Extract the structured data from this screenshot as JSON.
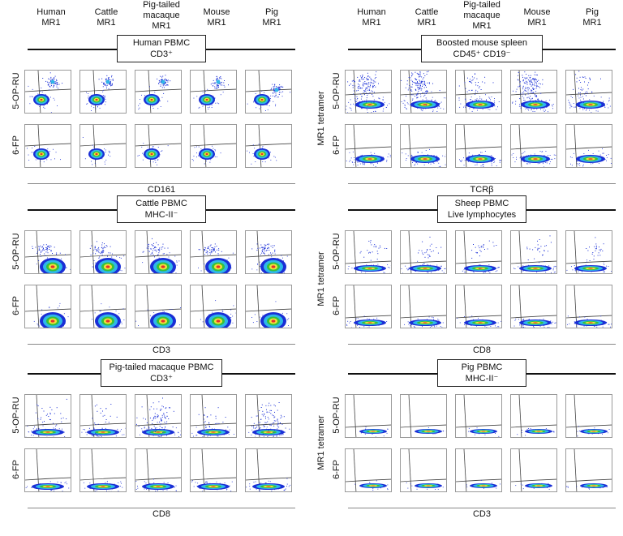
{
  "columns": [
    "Human MR1",
    "Cattle MR1",
    "Pig-tailed macaque MR1",
    "Mouse MR1",
    "Pig MR1"
  ],
  "left_column_headers": [
    "Human\nMR1",
    "Cattle\nMR1",
    "Pig-tailed\nmacaque\nMR1",
    "Mouse\nMR1",
    "Pig\nMR1"
  ],
  "right_column_headers": [
    "Human\nMR1",
    "Cattle\nMR1",
    "Pig-tailed\nmacaque\nMR1",
    "Mouse\nMR1",
    "Pig\nMR1"
  ],
  "panels": [
    {
      "id": "human-pbmc",
      "title": "Human PBMC",
      "subtitle": "CD3⁺",
      "xaxis": "CD161",
      "rows": [
        "5-OP-RU",
        "6-FP"
      ],
      "side_label": "",
      "sup": "+"
    },
    {
      "id": "mouse-spleen",
      "title": "Boosted mouse spleen",
      "subtitle": "CD45⁺ CD19⁻",
      "xaxis": "TCRβ",
      "rows": [
        "5-OP-RU",
        "6-FP"
      ],
      "side_label": "MR1 tetramer"
    },
    {
      "id": "cattle-pbmc",
      "title": "Cattle PBMC",
      "subtitle": "MHC-II⁻",
      "xaxis": "CD3",
      "rows": [
        "5-OP-RU",
        "6-FP"
      ],
      "side_label": ""
    },
    {
      "id": "sheep-pbmc",
      "title": "Sheep PBMC",
      "subtitle": "Live lymphocytes",
      "xaxis": "CD8",
      "rows": [
        "5-OP-RU",
        "6-FP"
      ],
      "side_label": "MR1 tetramer"
    },
    {
      "id": "macaque-pbmc",
      "title": "Pig-tailed macaque PBMC",
      "subtitle": "CD3⁺",
      "xaxis": "CD8",
      "rows": [
        "5-OP-RU",
        "6-FP"
      ],
      "side_label": ""
    },
    {
      "id": "pig-pbmc",
      "title": "Pig  PBMC",
      "subtitle": "MHC-II⁻",
      "xaxis": "CD3",
      "rows": [
        "5-OP-RU",
        "6-FP"
      ],
      "side_label": "MR1 tetramer"
    }
  ],
  "colors": {
    "blue": "#1a2fd6",
    "cyan": "#2fb8e8",
    "green": "#36c23a",
    "yellow": "#f2e23a",
    "red": "#e4312b",
    "gate": "#444444"
  }
}
